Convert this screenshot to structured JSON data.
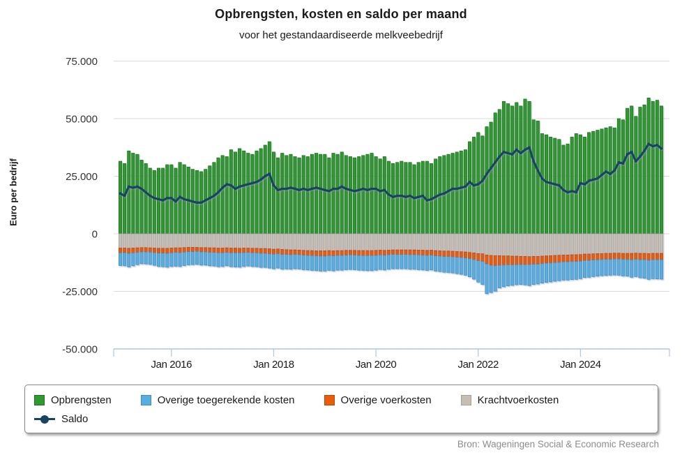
{
  "header": {
    "title": "Opbrengsten, kosten en saldo per maand",
    "subtitle": "voor het gestandaardiseerde melkveebedrijf"
  },
  "source": "Bron: Wageningen Social & Economic Research",
  "colors": {
    "opbrengsten": "#2f9a2f",
    "overige_toegerekende_kosten": "#5aade0",
    "overige_voerkosten": "#e85c0c",
    "krachtvoerkosten": "#c6beb5",
    "saldo": "#17455f",
    "gridline": "#d9d9d9",
    "axisline": "#aec6e3"
  },
  "axes": {
    "y_label": "Euro per bedrijf",
    "y_ticks": [
      {
        "value": 75000,
        "label": "75.000"
      },
      {
        "value": 50000,
        "label": "50.000"
      },
      {
        "value": 25000,
        "label": "25.000"
      },
      {
        "value": 0,
        "label": "0"
      },
      {
        "value": -25000,
        "label": "-25.000"
      },
      {
        "value": -50000,
        "label": "-50.000"
      }
    ],
    "x_ticks": [
      {
        "label": "Jan 2016",
        "month_index": 12
      },
      {
        "label": "Jan 2018",
        "month_index": 36
      },
      {
        "label": "Jan 2020",
        "month_index": 60
      },
      {
        "label": "Jan 2022",
        "month_index": 84
      },
      {
        "label": "Jan 2024",
        "month_index": 108
      }
    ]
  },
  "legend": {
    "items": [
      {
        "label": "Opbrengsten",
        "color": "#2f9a2f"
      },
      {
        "label": "Overige toegerekende kosten",
        "color": "#5aade0"
      },
      {
        "label": "Overige voerkosten",
        "color": "#e85c0c"
      },
      {
        "label": "Krachtvoerkosten",
        "color": "#c6beb5"
      },
      {
        "label": "Saldo",
        "color": "#17455f"
      }
    ]
  },
  "chart_data": {
    "type": "bar",
    "stacked": true,
    "title": "Opbrengsten, kosten en saldo per maand",
    "subtitle": "voor het gestandaardiseerde melkveebedrijf",
    "xlabel": "",
    "ylabel": "Euro per bedrijf",
    "ylim": [
      -50000,
      75000
    ],
    "grid": true,
    "legend_position": "bottom",
    "unit": "euro per bedrijf per maand",
    "categories": [
      "2015-01",
      "2015-02",
      "2015-03",
      "2015-04",
      "2015-05",
      "2015-06",
      "2015-07",
      "2015-08",
      "2015-09",
      "2015-10",
      "2015-11",
      "2015-12",
      "2016-01",
      "2016-02",
      "2016-03",
      "2016-04",
      "2016-05",
      "2016-06",
      "2016-07",
      "2016-08",
      "2016-09",
      "2016-10",
      "2016-11",
      "2016-12",
      "2017-01",
      "2017-02",
      "2017-03",
      "2017-04",
      "2017-05",
      "2017-06",
      "2017-07",
      "2017-08",
      "2017-09",
      "2017-10",
      "2017-11",
      "2017-12",
      "2018-01",
      "2018-02",
      "2018-03",
      "2018-04",
      "2018-05",
      "2018-06",
      "2018-07",
      "2018-08",
      "2018-09",
      "2018-10",
      "2018-11",
      "2018-12",
      "2019-01",
      "2019-02",
      "2019-03",
      "2019-04",
      "2019-05",
      "2019-06",
      "2019-07",
      "2019-08",
      "2019-09",
      "2019-10",
      "2019-11",
      "2019-12",
      "2020-01",
      "2020-02",
      "2020-03",
      "2020-04",
      "2020-05",
      "2020-06",
      "2020-07",
      "2020-08",
      "2020-09",
      "2020-10",
      "2020-11",
      "2020-12",
      "2021-01",
      "2021-02",
      "2021-03",
      "2021-04",
      "2021-05",
      "2021-06",
      "2021-07",
      "2021-08",
      "2021-09",
      "2021-10",
      "2021-11",
      "2021-12",
      "2022-01",
      "2022-02",
      "2022-03",
      "2022-04",
      "2022-05",
      "2022-06",
      "2022-07",
      "2022-08",
      "2022-09",
      "2022-10",
      "2022-11",
      "2022-12",
      "2023-01",
      "2023-02",
      "2023-03",
      "2023-04",
      "2023-05",
      "2023-06",
      "2023-07",
      "2023-08",
      "2023-09",
      "2023-10",
      "2023-11",
      "2023-12",
      "2024-01",
      "2024-02",
      "2024-03",
      "2024-04",
      "2024-05",
      "2024-06",
      "2024-07",
      "2024-08",
      "2024-09",
      "2024-10",
      "2024-11",
      "2024-12",
      "2025-01",
      "2025-02",
      "2025-03",
      "2025-04",
      "2025-05",
      "2025-06",
      "2025-07",
      "2025-08"
    ],
    "series": [
      {
        "name": "Opbrengsten",
        "type": "bar",
        "color": "#2f9a2f",
        "values": [
          31500,
          30500,
          36000,
          35000,
          34500,
          32000,
          30500,
          28500,
          27500,
          28500,
          28500,
          30000,
          30000,
          28500,
          31000,
          30000,
          29000,
          28000,
          27500,
          27000,
          28000,
          29500,
          31000,
          33000,
          34000,
          33500,
          36500,
          35500,
          37000,
          36000,
          35000,
          34500,
          36000,
          37000,
          38500,
          40000,
          35500,
          33000,
          35000,
          34000,
          34500,
          33500,
          33000,
          34000,
          33500,
          34500,
          35000,
          34500,
          34500,
          33000,
          35000,
          34500,
          35500,
          34000,
          33500,
          33000,
          33500,
          34000,
          34500,
          35000,
          33500,
          32500,
          33500,
          31500,
          30500,
          31000,
          31500,
          31000,
          31000,
          30000,
          31000,
          31500,
          31500,
          30500,
          32500,
          33500,
          34000,
          34500,
          35000,
          35500,
          36000,
          36500,
          40000,
          42000,
          44000,
          42500,
          46500,
          48500,
          52500,
          54000,
          57500,
          56500,
          55500,
          57000,
          55500,
          58500,
          57500,
          49500,
          49000,
          43500,
          43000,
          42000,
          41500,
          41000,
          38500,
          39000,
          42000,
          43500,
          43000,
          42000,
          44000,
          44500,
          45000,
          45500,
          46000,
          46500,
          46000,
          50000,
          49500,
          54500,
          55500,
          51000,
          55000,
          56000,
          59000,
          57500,
          58000,
          55500
        ]
      },
      {
        "name": "Krachtvoerkosten",
        "type": "bar",
        "color": "#c6beb5",
        "values": [
          -6200,
          -6200,
          -6300,
          -6200,
          -6100,
          -6000,
          -6000,
          -6100,
          -6200,
          -6300,
          -6300,
          -6300,
          -6200,
          -6100,
          -6100,
          -6000,
          -5900,
          -5900,
          -5900,
          -6000,
          -6000,
          -6100,
          -6100,
          -6200,
          -6200,
          -6100,
          -6200,
          -6200,
          -6300,
          -6200,
          -6200,
          -6300,
          -6300,
          -6400,
          -6400,
          -6500,
          -6700,
          -6600,
          -6800,
          -6900,
          -7000,
          -7000,
          -7100,
          -7200,
          -7300,
          -7300,
          -7400,
          -7400,
          -7400,
          -7300,
          -7400,
          -7300,
          -7300,
          -7200,
          -7200,
          -7200,
          -7300,
          -7300,
          -7300,
          -7300,
          -7200,
          -7100,
          -7200,
          -7100,
          -7000,
          -7000,
          -7000,
          -7000,
          -7000,
          -7000,
          -7100,
          -7100,
          -7200,
          -7100,
          -7300,
          -7400,
          -7500,
          -7500,
          -7600,
          -7700,
          -7800,
          -7900,
          -8100,
          -8300,
          -8600,
          -8700,
          -9200,
          -9400,
          -9500,
          -9500,
          -9600,
          -9600,
          -9700,
          -9700,
          -9800,
          -9800,
          -9900,
          -9800,
          -9800,
          -9700,
          -9600,
          -9500,
          -9400,
          -9300,
          -9200,
          -9200,
          -9100,
          -9100,
          -9000,
          -8800,
          -8800,
          -8700,
          -8600,
          -8600,
          -8500,
          -8500,
          -8400,
          -8400,
          -8500,
          -8500,
          -8500,
          -8400,
          -8500,
          -8500,
          -8600,
          -8500,
          -8500,
          -8500
        ]
      },
      {
        "name": "Overige voerkosten",
        "type": "bar",
        "color": "#e85c0c",
        "values": [
          -2100,
          -2000,
          -2200,
          -2100,
          -2000,
          -1900,
          -1900,
          -1900,
          -2000,
          -2100,
          -2100,
          -2200,
          -2100,
          -2000,
          -2100,
          -2000,
          -1900,
          -1900,
          -1800,
          -1900,
          -1900,
          -2000,
          -2000,
          -2100,
          -2100,
          -2000,
          -2100,
          -2100,
          -2000,
          -2000,
          -1900,
          -2000,
          -2000,
          -2100,
          -2100,
          -2200,
          -2200,
          -2100,
          -2200,
          -2100,
          -2100,
          -2000,
          -2000,
          -2100,
          -2100,
          -2200,
          -2200,
          -2300,
          -2300,
          -2200,
          -2200,
          -2100,
          -2100,
          -2100,
          -2000,
          -2100,
          -2100,
          -2200,
          -2200,
          -2200,
          -2200,
          -2100,
          -2100,
          -2000,
          -2000,
          -2000,
          -2000,
          -2000,
          -2100,
          -2100,
          -2100,
          -2200,
          -2200,
          -2200,
          -2300,
          -2300,
          -2400,
          -2400,
          -2400,
          -2500,
          -2500,
          -2600,
          -2700,
          -2900,
          -3100,
          -3300,
          -3900,
          -4300,
          -4400,
          -4200,
          -4000,
          -3900,
          -3800,
          -3700,
          -3600,
          -3600,
          -3500,
          -3400,
          -3400,
          -3300,
          -3200,
          -3200,
          -3100,
          -3100,
          -3000,
          -3000,
          -3000,
          -2900,
          -2900,
          -2800,
          -2800,
          -2700,
          -2700,
          -2600,
          -2600,
          -2600,
          -2600,
          -2600,
          -2700,
          -2700,
          -2800,
          -2700,
          -2800,
          -2800,
          -2900,
          -2800,
          -2800,
          -2800
        ]
      },
      {
        "name": "Overige toegerekende kosten",
        "type": "bar",
        "color": "#5aade0",
        "values": [
          -5500,
          -5700,
          -5900,
          -5600,
          -5300,
          -5100,
          -5200,
          -5300,
          -5500,
          -5800,
          -5900,
          -6000,
          -5900,
          -6000,
          -6000,
          -5800,
          -5700,
          -5600,
          -5600,
          -5700,
          -5700,
          -5800,
          -5900,
          -6000,
          -5900,
          -5800,
          -6000,
          -6100,
          -6200,
          -6000,
          -5900,
          -5900,
          -6000,
          -6100,
          -6100,
          -6200,
          -6300,
          -6200,
          -6400,
          -6300,
          -6300,
          -6200,
          -6200,
          -6300,
          -6300,
          -6400,
          -6400,
          -6500,
          -6500,
          -6400,
          -6500,
          -6400,
          -6400,
          -6300,
          -6300,
          -6300,
          -6400,
          -6400,
          -6500,
          -6500,
          -6400,
          -6300,
          -6400,
          -6300,
          -6200,
          -6200,
          -6200,
          -6200,
          -6300,
          -6300,
          -6400,
          -6400,
          -6500,
          -6400,
          -6600,
          -6700,
          -6800,
          -6900,
          -7000,
          -7100,
          -7300,
          -7500,
          -7900,
          -8500,
          -9300,
          -10000,
          -12900,
          -11800,
          -11000,
          -9800,
          -9400,
          -9100,
          -8900,
          -8700,
          -8600,
          -8800,
          -9100,
          -8800,
          -8600,
          -8400,
          -8300,
          -8200,
          -8100,
          -8000,
          -7900,
          -7900,
          -7800,
          -7800,
          -7600,
          -7400,
          -7300,
          -7200,
          -7100,
          -7000,
          -7000,
          -6900,
          -6900,
          -7000,
          -7100,
          -7200,
          -7600,
          -7500,
          -7800,
          -8000,
          -8300,
          -8200,
          -8300,
          -8400
        ]
      },
      {
        "name": "Saldo",
        "type": "line",
        "color": "#17455f",
        "values": [
          17500,
          16500,
          20500,
          20000,
          20500,
          19500,
          18000,
          16500,
          15500,
          15000,
          14500,
          15500,
          15500,
          14000,
          16000,
          15000,
          14500,
          14000,
          13500,
          13500,
          14500,
          15500,
          16500,
          18000,
          20000,
          21500,
          21000,
          19500,
          20500,
          21000,
          21500,
          22000,
          22500,
          23500,
          25000,
          26000,
          21000,
          19000,
          19500,
          19500,
          20000,
          19500,
          19000,
          19500,
          19000,
          19500,
          20000,
          19500,
          19000,
          18500,
          19500,
          19500,
          20500,
          19500,
          19000,
          18500,
          19000,
          19500,
          19000,
          19500,
          19500,
          18500,
          19000,
          17000,
          16000,
          16500,
          16500,
          16000,
          16500,
          15500,
          16000,
          16500,
          14500,
          15000,
          16000,
          17000,
          17500,
          18500,
          19500,
          19500,
          20000,
          20500,
          22500,
          21000,
          21500,
          23000,
          26000,
          28500,
          31000,
          33500,
          35500,
          35000,
          34500,
          36500,
          35000,
          36500,
          37500,
          31500,
          27500,
          24000,
          22500,
          22000,
          21500,
          21000,
          19000,
          18000,
          18500,
          18000,
          22000,
          21500,
          23000,
          23500,
          24000,
          25500,
          27000,
          26000,
          27500,
          31000,
          30500,
          34500,
          35500,
          31500,
          33500,
          36000,
          39000,
          38000,
          38500,
          37000
        ]
      }
    ]
  }
}
